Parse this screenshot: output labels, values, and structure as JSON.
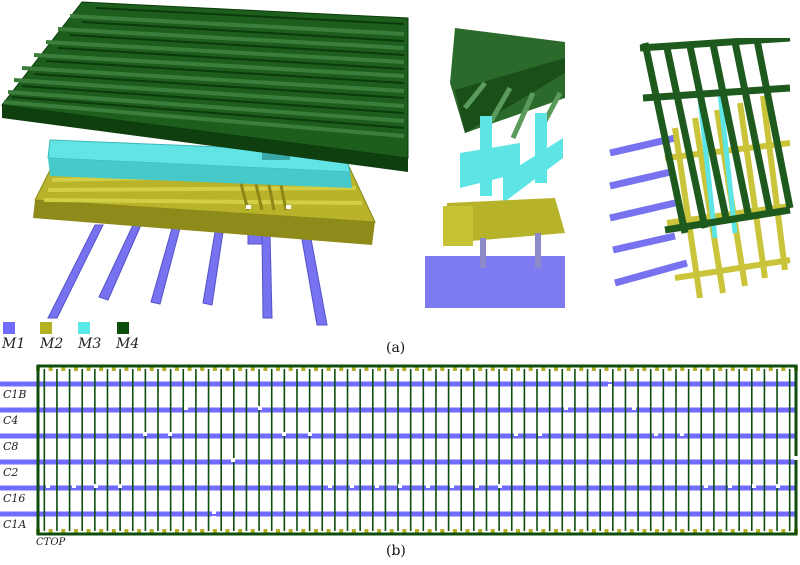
{
  "legend": [
    {
      "label": "M1",
      "color": "#6f6cff"
    },
    {
      "label": "M2",
      "color": "#b3b024"
    },
    {
      "label": "M3",
      "color": "#5ae8e8"
    },
    {
      "label": "M4",
      "color": "#0d4d0d"
    }
  ],
  "captions": {
    "a": "(a)",
    "b": "(b)"
  },
  "layout_rows": [
    {
      "label": "C1B"
    },
    {
      "label": "C4"
    },
    {
      "label": "C8"
    },
    {
      "label": "C2"
    },
    {
      "label": "C16"
    },
    {
      "label": "C1A"
    }
  ],
  "ctop_label": "CTOP"
}
